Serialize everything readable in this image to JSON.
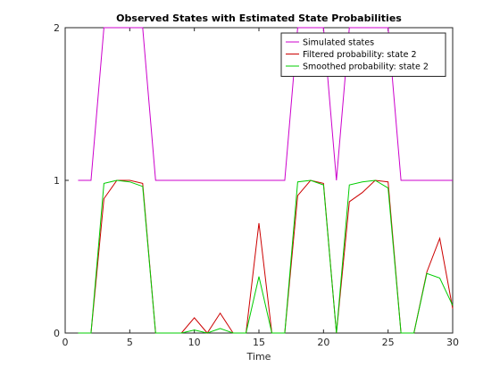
{
  "chart_data": {
    "type": "line",
    "title": "Observed States with Estimated State Probabilities",
    "xlabel": "Time",
    "ylabel": "",
    "xlim": [
      0,
      30
    ],
    "ylim": [
      0,
      2
    ],
    "xticks": [
      0,
      5,
      10,
      15,
      20,
      25,
      30
    ],
    "yticks": [
      0,
      1,
      2
    ],
    "grid": false,
    "legend_position": "top-right",
    "series": [
      {
        "name": "Simulated states",
        "color": "#cc00cc",
        "x": [
          1,
          2,
          3,
          4,
          5,
          6,
          7,
          8,
          9,
          10,
          11,
          12,
          13,
          14,
          15,
          16,
          17,
          18,
          19,
          20,
          21,
          22,
          23,
          24,
          25,
          26,
          27,
          28,
          29,
          30
        ],
        "y": [
          1,
          1,
          2,
          2,
          2,
          2,
          1,
          1,
          1,
          1,
          1,
          1,
          1,
          1,
          1,
          1,
          1,
          2,
          2,
          2,
          1,
          2,
          2,
          2,
          2,
          1,
          1,
          1,
          1,
          1
        ]
      },
      {
        "name": "Filtered probability: state 2",
        "color": "#cc0000",
        "x": [
          1,
          2,
          3,
          4,
          5,
          6,
          7,
          8,
          9,
          10,
          11,
          12,
          13,
          14,
          15,
          16,
          17,
          18,
          19,
          20,
          21,
          22,
          23,
          24,
          25,
          26,
          27,
          28,
          29,
          30
        ],
        "y": [
          0,
          0,
          0.88,
          1,
          1,
          0.98,
          0,
          0,
          0,
          0.1,
          0,
          0.13,
          0,
          0,
          0.72,
          0,
          0,
          0.9,
          1,
          0.98,
          0,
          0.86,
          0.92,
          1,
          0.99,
          0,
          0,
          0.4,
          0.62,
          0.16
        ]
      },
      {
        "name": "Smoothed probability: state 2",
        "color": "#00cc00",
        "x": [
          1,
          2,
          3,
          4,
          5,
          6,
          7,
          8,
          9,
          10,
          11,
          12,
          13,
          14,
          15,
          16,
          17,
          18,
          19,
          20,
          21,
          22,
          23,
          24,
          25,
          26,
          27,
          28,
          29,
          30
        ],
        "y": [
          0,
          0,
          0.98,
          1,
          0.99,
          0.96,
          0,
          0,
          0,
          0.02,
          0,
          0.03,
          0,
          0,
          0.37,
          0,
          0,
          0.99,
          1,
          0.97,
          0,
          0.97,
          0.99,
          1,
          0.95,
          0,
          0,
          0.39,
          0.36,
          0.18
        ]
      }
    ]
  }
}
